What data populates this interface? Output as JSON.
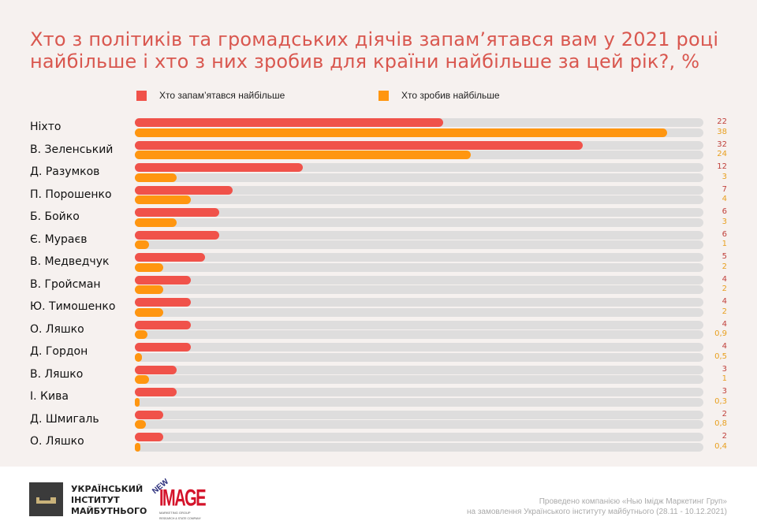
{
  "chart_data": {
    "type": "bar",
    "orientation": "horizontal",
    "title": "Хто з політиків та громадських діячів запам’ятався вам у 2021 році найбільше і хто з них зробив для країни найбільше за цей рік?, %",
    "xlabel": "",
    "ylabel": "",
    "xlim": [
      0,
      40.6
    ],
    "grid": false,
    "legend_position": "top",
    "categories": [
      "Ніхто",
      "В. Зеленський",
      "Д. Разумков",
      "П. Порошенко",
      "Б. Бойко",
      "Є. Мураєв",
      "В. Медведчук",
      "В. Гройсман",
      "Ю. Тимошенко",
      "О. Ляшко",
      "Д. Гордон",
      "В. Ляшко",
      "І. Кива",
      "Д. Шмигаль",
      "О. Ляшко"
    ],
    "series": [
      {
        "name": "Хто запам’ятався найбільше",
        "color": "#f0524a",
        "label_color": "#c0413c",
        "values": [
          22,
          32,
          12,
          7,
          6,
          6,
          5,
          4,
          4,
          4,
          4,
          3,
          3,
          2,
          2
        ],
        "labels": [
          "22",
          "32",
          "12",
          "7",
          "6",
          "6",
          "5",
          "4",
          "4",
          "4",
          "4",
          "3",
          "3",
          "2",
          "2"
        ]
      },
      {
        "name": "Хто зробив найбільше",
        "color": "#ff9610",
        "label_color": "#e8a020",
        "values": [
          38,
          24,
          3,
          4,
          3,
          1,
          2,
          2,
          2,
          0.9,
          0.5,
          1,
          0.3,
          0.8,
          0.4
        ],
        "labels": [
          "38",
          "24",
          "3",
          "4",
          "3",
          "1",
          "2",
          "2",
          "2",
          "0,9",
          "0,5",
          "1",
          "0,3",
          "0,8",
          "0,4"
        ]
      }
    ]
  },
  "footer": {
    "org_name_lines": [
      "УКРАЇНСЬКИЙ",
      "ІНСТИТУТ",
      "МАЙБУТНЬОГО"
    ],
    "org_icon": "key-icon",
    "partner_logo_top": "NEW",
    "partner_logo_main": "IMAGE",
    "partner_logo_sub1": "MARKETING GROUP",
    "partner_logo_sub2": "RESEARCH & STATE COMPANY",
    "credits_line1": "Проведено компанією «Нью Імідж Маркетинг Груп»",
    "credits_line2": "на замовлення Українського інституту майбутнього (28.11 - 10.12.2021)"
  }
}
